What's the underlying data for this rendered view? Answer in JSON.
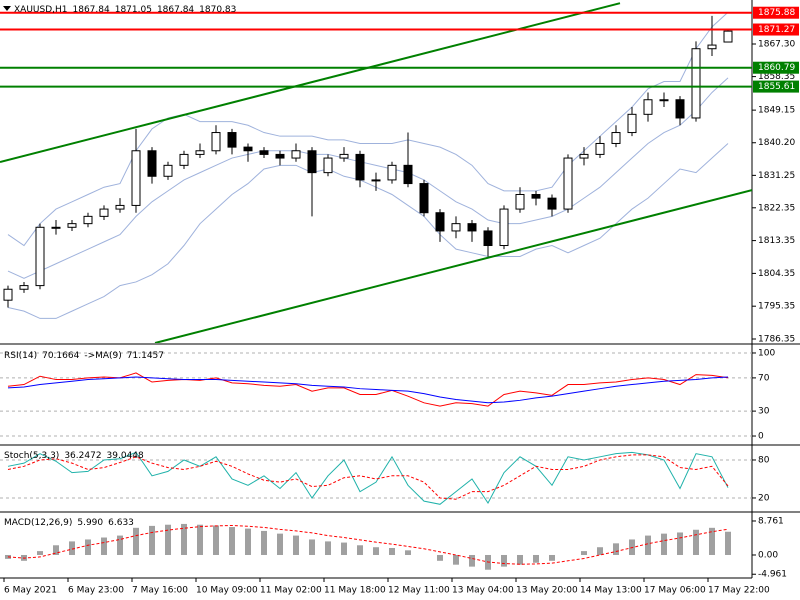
{
  "chart_data": [
    {
      "type": "candlestick",
      "title": "XAUUSD,H1",
      "open": [
        1797,
        1800,
        1801,
        1817,
        1817,
        1818,
        1820,
        1822,
        1823,
        1838,
        1831,
        1834,
        1837,
        1838,
        1843,
        1839,
        1838,
        1837,
        1836,
        1838,
        1832,
        1836,
        1837,
        1830,
        1830,
        1834,
        1829,
        1821,
        1816,
        1818,
        1816,
        1812,
        1822,
        1826,
        1825,
        1822,
        1836,
        1837,
        1840,
        1843,
        1848,
        1852,
        1852,
        1847,
        1866,
        1867.84
      ],
      "high": [
        1801,
        1802,
        1818,
        1819,
        1819,
        1821,
        1823,
        1825,
        1844,
        1839,
        1835,
        1838,
        1840,
        1845,
        1844,
        1840,
        1839,
        1838,
        1840,
        1839,
        1837,
        1839,
        1838,
        1832,
        1835,
        1843,
        1830,
        1822,
        1820,
        1819,
        1817,
        1823,
        1828,
        1827,
        1826,
        1837,
        1839,
        1842,
        1845,
        1850,
        1854,
        1854,
        1853,
        1868,
        1875,
        1871.05
      ],
      "low": [
        1795,
        1799,
        1800,
        1815,
        1816,
        1817,
        1819,
        1821,
        1821,
        1829,
        1830,
        1833,
        1836,
        1837,
        1837,
        1835,
        1836,
        1834,
        1835,
        1820,
        1831,
        1835,
        1828,
        1827,
        1829,
        1828,
        1820,
        1813,
        1814,
        1813,
        1809,
        1811,
        1821,
        1823,
        1820,
        1821,
        1834,
        1836,
        1839,
        1842,
        1846,
        1850,
        1845,
        1846,
        1864,
        1867.84
      ],
      "close": [
        1800,
        1801,
        1817,
        1817,
        1818,
        1820,
        1822,
        1823,
        1838,
        1831,
        1834,
        1837,
        1838,
        1843,
        1839,
        1838,
        1837,
        1836,
        1838,
        1832,
        1836,
        1837,
        1830,
        1830,
        1834,
        1829,
        1821,
        1816,
        1818,
        1816,
        1812,
        1822,
        1826,
        1825,
        1822,
        1836,
        1837,
        1840,
        1843,
        1848,
        1852,
        1852,
        1847,
        1866,
        1867,
        1870.83
      ],
      "bands": {
        "color": "#9fb2dc",
        "upper": [
          1815,
          1812,
          1818,
          1822,
          1824,
          1826,
          1828,
          1829,
          1838,
          1844,
          1847,
          1848,
          1846,
          1846,
          1846,
          1845,
          1843,
          1842,
          1842,
          1842,
          1841,
          1841,
          1840,
          1840,
          1840,
          1841,
          1840,
          1839,
          1837,
          1834,
          1829,
          1827,
          1827,
          1827,
          1828,
          1834,
          1838,
          1842,
          1846,
          1850,
          1855,
          1857,
          1857,
          1866,
          1872,
          1876
        ],
        "middle": [
          1805,
          1803,
          1805,
          1807,
          1809,
          1811,
          1813,
          1815,
          1820,
          1824,
          1827,
          1830,
          1832,
          1834,
          1836,
          1837,
          1838,
          1838,
          1838,
          1837,
          1837,
          1836,
          1835,
          1834,
          1833,
          1832,
          1830,
          1827,
          1824,
          1822,
          1819,
          1818,
          1818,
          1819,
          1820,
          1822,
          1825,
          1828,
          1832,
          1836,
          1840,
          1843,
          1845,
          1849,
          1854,
          1858
        ],
        "lower": [
          1795,
          1794,
          1792,
          1792,
          1794,
          1796,
          1798,
          1801,
          1802,
          1804,
          1807,
          1812,
          1818,
          1822,
          1826,
          1829,
          1833,
          1834,
          1834,
          1832,
          1833,
          1831,
          1830,
          1828,
          1826,
          1823,
          1820,
          1815,
          1811,
          1810,
          1809,
          1809,
          1809,
          1811,
          1812,
          1810,
          1812,
          1814,
          1818,
          1822,
          1825,
          1829,
          1833,
          1832,
          1836,
          1840
        ]
      },
      "levels": [
        {
          "value": 1875.88,
          "color": "#ff0000"
        },
        {
          "value": 1871.27,
          "color": "#ff0000"
        },
        {
          "value": 1860.79,
          "color": "#008000"
        },
        {
          "value": 1855.61,
          "color": "#008000"
        }
      ],
      "trendlines": [
        {
          "x": [
            -0.5,
            38.25
          ],
          "y": [
            1834.9,
            1878.5
          ],
          "color": "#008000"
        },
        {
          "x": [
            9.19,
            46.5
          ],
          "y": [
            1785.25,
            1827.2
          ],
          "color": "#008000"
        }
      ],
      "ylim": [
        1785.25,
        1879.37
      ],
      "yticks": [
        {
          "value": 1867.3,
          "label": "1867.30"
        },
        1858.35,
        1849.15,
        {
          "value": 1840.2,
          "label": "1840.20"
        },
        1831.25,
        1822.35,
        1813.35,
        1804.35,
        1795.35,
        1786.35
      ]
    },
    {
      "type": "line",
      "series": [
        {
          "name": "RSI(14)",
          "color": "#ff0000",
          "values": [
            60,
            62,
            72,
            68,
            68,
            70,
            71,
            70,
            76,
            65,
            67,
            68,
            67,
            70,
            64,
            63,
            61,
            60,
            62,
            54,
            58,
            58,
            50,
            50,
            55,
            48,
            40,
            36,
            40,
            39,
            36,
            50,
            54,
            52,
            49,
            62,
            62,
            64,
            65,
            68,
            70,
            68,
            62,
            74,
            73,
            70.1664
          ]
        },
        {
          "name": "->MA(9)",
          "color": "#0000ff",
          "values": [
            58,
            59,
            62,
            64,
            66,
            68,
            69,
            70,
            71,
            70,
            69,
            68,
            68,
            68,
            67,
            66,
            65,
            64,
            63,
            61,
            60,
            59,
            57,
            56,
            55,
            54,
            51,
            47,
            44,
            42,
            40,
            41,
            43,
            46,
            48,
            51,
            54,
            57,
            60,
            62,
            64,
            66,
            67,
            68,
            70,
            71.1457
          ]
        }
      ],
      "ylim": [
        -8.4,
        107.2
      ],
      "yticks": [
        100,
        70,
        30,
        0
      ]
    },
    {
      "type": "line",
      "title": "Stoch(5,3,3)",
      "series": [
        {
          "color": "#20b2aa",
          "values": [
            70,
            75,
            90,
            78,
            60,
            62,
            80,
            82,
            92,
            55,
            62,
            80,
            70,
            85,
            50,
            40,
            55,
            35,
            60,
            20,
            55,
            80,
            30,
            45,
            85,
            40,
            15,
            10,
            30,
            50,
            12,
            60,
            85,
            70,
            40,
            85,
            80,
            85,
            90,
            92,
            88,
            80,
            35,
            90,
            85,
            36.2472
          ]
        },
        {
          "color": "#ff0000",
          "dash": true,
          "values": [
            65,
            70,
            80,
            82,
            75,
            65,
            68,
            76,
            85,
            75,
            68,
            65,
            70,
            78,
            70,
            58,
            48,
            45,
            50,
            38,
            40,
            52,
            55,
            50,
            55,
            55,
            45,
            20,
            18,
            30,
            30,
            40,
            55,
            70,
            65,
            65,
            70,
            80,
            85,
            88,
            88,
            85,
            68,
            65,
            70,
            39.0448
          ]
        }
      ],
      "ylim": [
        1,
        100.5
      ],
      "yticks": [
        80,
        20
      ]
    },
    {
      "type": "bar",
      "title": "MACD(12,26,9)",
      "title_values": [
        "5.990",
        "6.633"
      ],
      "color": "#a0a0a0",
      "values": [
        -1,
        -1.5,
        1,
        2.5,
        3.5,
        4,
        4.5,
        5,
        7,
        7.5,
        7.8,
        8,
        7.8,
        7.6,
        7.2,
        6.8,
        6.2,
        5.5,
        5,
        4,
        3.5,
        3.2,
        2.5,
        2,
        1.8,
        1.2,
        0,
        -1.5,
        -2.5,
        -3,
        -3.8,
        -3,
        -2.5,
        -2,
        -1.5,
        0,
        1,
        2,
        3,
        4,
        5,
        5.5,
        5.8,
        6.5,
        7,
        5.99
      ],
      "signal": {
        "color": "#ff0000",
        "values": [
          -0.5,
          -0.8,
          -0.5,
          0.5,
          1.5,
          2.5,
          3.2,
          4,
          5,
          5.8,
          6.4,
          6.9,
          7.3,
          7.5,
          7.6,
          7.4,
          7.1,
          6.6,
          6.2,
          5.7,
          5,
          4.5,
          3.9,
          3.3,
          2.8,
          2.2,
          1.6,
          0.8,
          0,
          -0.9,
          -1.8,
          -2.2,
          -2.4,
          -2.3,
          -2.1,
          -1.5,
          -0.9,
          0,
          0.9,
          1.9,
          2.9,
          3.7,
          4.4,
          5.2,
          6,
          6.633
        ]
      },
      "ylim": [
        -5.93,
        10.56
      ],
      "yticks": [
        8.761,
        {
          "value": 0,
          "label": "0.00"
        },
        -4.961
      ],
      "categories": [
        "6 May 2021",
        null,
        null,
        null,
        "6 May 23:00",
        null,
        null,
        null,
        "7 May 16:00",
        null,
        null,
        null,
        "10 May 09:00",
        null,
        null,
        null,
        "11 May 02:00",
        null,
        null,
        null,
        "11 May 18:00",
        null,
        null,
        null,
        "12 May 11:00",
        null,
        null,
        null,
        "13 May 04:00",
        null,
        null,
        null,
        "13 May 20:00",
        null,
        null,
        null,
        "14 May 13:00",
        null,
        null,
        null,
        "17 May 06:00",
        null,
        null,
        null,
        "17 May 22:00",
        null
      ]
    }
  ]
}
